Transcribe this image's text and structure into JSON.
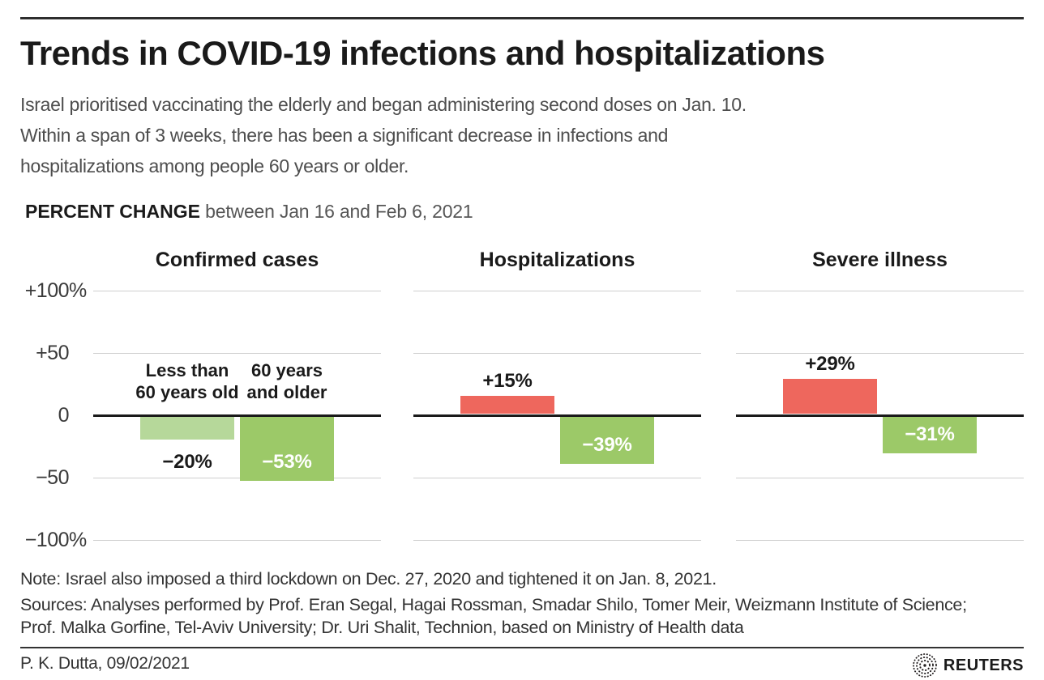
{
  "header": {
    "title": "Trends in COVID-19 infections and hospitalizations",
    "subtitle_lines": [
      "Israel prioritised vaccinating the elderly and began administering second doses on Jan. 10.",
      "Within a span of 3 weeks, there has been a significant decrease in infections and",
      "hospitalizations among people 60 years or older."
    ]
  },
  "kicker": {
    "bold": "PERCENT CHANGE",
    "rest": " between Jan 16 and Feb 6, 2021"
  },
  "chart_data": {
    "type": "bar",
    "title": "PERCENT CHANGE between Jan 16 and Feb 6, 2021",
    "ylim": [
      -100,
      100
    ],
    "grid": true,
    "y_ticks": [
      {
        "num": "+100",
        "pct": "%",
        "value": 100
      },
      {
        "num": "+50",
        "pct": "",
        "value": 50
      },
      {
        "num": "0",
        "pct": "",
        "value": 0
      },
      {
        "num": "−50",
        "pct": "",
        "value": -50
      },
      {
        "num": "−100",
        "pct": "%",
        "value": -100
      }
    ],
    "panels": [
      {
        "title": "Confirmed cases",
        "bars": [
          {
            "group_lines": [
              "Less than",
              "60 years old"
            ],
            "value": -20,
            "label": "−20%",
            "color_key": "light_green",
            "label_mode": "below"
          },
          {
            "group_lines": [
              "60 years",
              "and older"
            ],
            "value": -53,
            "label": "−53%",
            "color_key": "green",
            "label_mode": "inside"
          }
        ]
      },
      {
        "title": "Hospitalizations",
        "bars": [
          {
            "value": 15,
            "label": "+15%",
            "color_key": "red",
            "label_mode": "above"
          },
          {
            "value": -39,
            "label": "−39%",
            "color_key": "green",
            "label_mode": "inside"
          }
        ]
      },
      {
        "title": "Severe illness",
        "bars": [
          {
            "value": 29,
            "label": "+29%",
            "color_key": "red",
            "label_mode": "above"
          },
          {
            "value": -31,
            "label": "−31%",
            "color_key": "green",
            "label_mode": "inside"
          }
        ]
      }
    ]
  },
  "colors": {
    "red": "#ee675d",
    "green": "#9cc968",
    "light_green": "#b6d89a",
    "grid": "#cfcfcf",
    "zero_line": "#1a1a1a"
  },
  "footnotes": {
    "note": "Note: Israel also imposed a third lockdown on Dec. 27, 2020 and tightened it on Jan. 8, 2021.",
    "sources_lines": [
      "Sources: Analyses performed by Prof. Eran Segal, Hagai Rossman, Smadar Shilo, Tomer Meir, Weizmann Institute of Science;",
      "Prof. Malka Gorfine, Tel-Aviv University; Dr. Uri Shalit, Technion, based on Ministry of Health data"
    ]
  },
  "footer": {
    "byline": "P. K. Dutta, 09/02/2021",
    "brand": "REUTERS"
  }
}
